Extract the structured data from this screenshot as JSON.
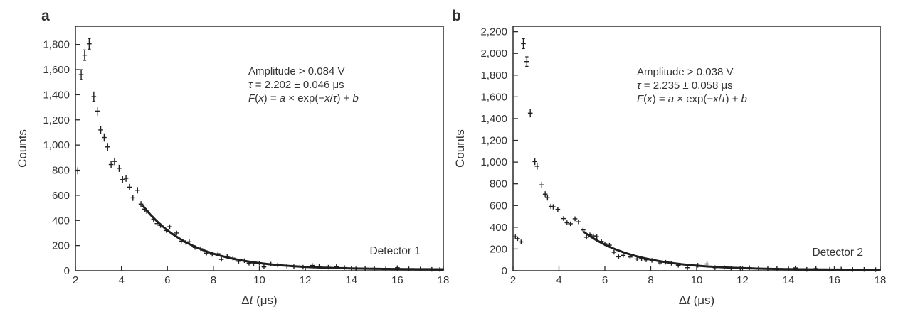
{
  "figure": {
    "background": "#ffffff",
    "ink_color": "#2b2b2b",
    "text_color": "#333333"
  },
  "chart_data": [
    {
      "type": "scatter",
      "panel_letter": "a",
      "detector_label": "Detector 1",
      "ylabel": "Counts",
      "xlabel": "Δt (μs)",
      "xlabel_segments": [
        {
          "t": "Δ"
        },
        {
          "t": "t",
          "i": 1
        },
        {
          "t": " (μs)"
        }
      ],
      "xlim": [
        2,
        18
      ],
      "ylim": [
        0,
        1945
      ],
      "x_ticks": [
        2,
        4,
        6,
        8,
        10,
        12,
        14,
        16,
        18
      ],
      "y_ticks": [
        0,
        200,
        400,
        600,
        800,
        1000,
        1200,
        1400,
        1600,
        1800
      ],
      "grid": false,
      "legend": false,
      "annotation_lines": [
        [
          {
            "t": "Amplitude > 0.084 V"
          }
        ],
        [
          {
            "t": "τ",
            "i": 1
          },
          {
            "t": " = 2.202 ± 0.046 μs"
          }
        ],
        [
          {
            "t": "F",
            "i": 1
          },
          {
            "t": "("
          },
          {
            "t": "x",
            "i": 1
          },
          {
            "t": ") = "
          },
          {
            "t": "a",
            "i": 1
          },
          {
            "t": " × exp(−"
          },
          {
            "t": "x",
            "i": 1
          },
          {
            "t": "/"
          },
          {
            "t": "τ",
            "i": 1
          },
          {
            "t": ") + "
          },
          {
            "t": "b",
            "i": 1
          }
        ]
      ],
      "fit": {
        "model": "F(x) = a × exp(−x/τ) + b",
        "a": 4760,
        "tau": 2.202,
        "b": 10,
        "x_start": 4.95,
        "x_end": 18
      },
      "points": [
        [
          2.1,
          795
        ],
        [
          2.25,
          1560
        ],
        [
          2.4,
          1715
        ],
        [
          2.6,
          1805
        ],
        [
          2.8,
          1385
        ],
        [
          2.95,
          1270
        ],
        [
          3.1,
          1120
        ],
        [
          3.25,
          1060
        ],
        [
          3.4,
          985
        ],
        [
          3.55,
          845
        ],
        [
          3.7,
          870
        ],
        [
          3.9,
          815
        ],
        [
          4.05,
          725
        ],
        [
          4.2,
          735
        ],
        [
          4.35,
          665
        ],
        [
          4.5,
          580
        ],
        [
          4.7,
          640
        ],
        [
          4.85,
          530
        ],
        [
          5.0,
          490
        ],
        [
          5.1,
          475
        ],
        [
          5.4,
          410
        ],
        [
          5.55,
          375
        ],
        [
          5.7,
          360
        ],
        [
          5.95,
          320
        ],
        [
          6.1,
          350
        ],
        [
          6.4,
          300
        ],
        [
          6.6,
          235
        ],
        [
          6.8,
          225
        ],
        [
          6.95,
          230
        ],
        [
          7.2,
          185
        ],
        [
          7.45,
          175
        ],
        [
          7.7,
          140
        ],
        [
          7.95,
          130
        ],
        [
          8.2,
          135
        ],
        [
          8.35,
          90
        ],
        [
          8.6,
          115
        ],
        [
          8.85,
          100
        ],
        [
          9.1,
          75
        ],
        [
          9.35,
          80
        ],
        [
          9.55,
          60
        ],
        [
          9.75,
          55
        ],
        [
          10.0,
          60
        ],
        [
          10.2,
          30
        ],
        [
          10.5,
          52
        ],
        [
          10.8,
          45
        ],
        [
          11.2,
          38
        ],
        [
          11.5,
          32
        ],
        [
          11.9,
          28
        ],
        [
          12.3,
          42
        ],
        [
          12.6,
          35
        ],
        [
          13.0,
          28
        ],
        [
          13.35,
          32
        ],
        [
          13.7,
          25
        ],
        [
          14.2,
          14
        ],
        [
          14.6,
          18
        ],
        [
          15.0,
          20
        ],
        [
          15.5,
          16
        ],
        [
          16.0,
          24
        ],
        [
          16.5,
          15
        ],
        [
          17.0,
          13
        ],
        [
          17.5,
          11
        ],
        [
          17.85,
          10
        ]
      ]
    },
    {
      "type": "scatter",
      "panel_letter": "b",
      "detector_label": "Detector 2",
      "ylabel": "Counts",
      "xlabel": "Δt (μs)",
      "xlabel_segments": [
        {
          "t": "Δ"
        },
        {
          "t": "t",
          "i": 1
        },
        {
          "t": " (μs)"
        }
      ],
      "xlim": [
        2,
        18
      ],
      "ylim": [
        0,
        2250
      ],
      "x_ticks": [
        2,
        4,
        6,
        8,
        10,
        12,
        14,
        16,
        18
      ],
      "y_ticks": [
        0,
        200,
        400,
        600,
        800,
        1000,
        1200,
        1400,
        1600,
        1800,
        2000,
        2200
      ],
      "grid": false,
      "legend": false,
      "annotation_lines": [
        [
          {
            "t": "Amplitude > 0.038 V"
          }
        ],
        [
          {
            "t": "τ",
            "i": 1
          },
          {
            "t": " = 2.235 ± 0.058 μs"
          }
        ],
        [
          {
            "t": "F",
            "i": 1
          },
          {
            "t": "("
          },
          {
            "t": "x",
            "i": 1
          },
          {
            "t": ") = "
          },
          {
            "t": "a",
            "i": 1
          },
          {
            "t": " × exp(−"
          },
          {
            "t": "x",
            "i": 1
          },
          {
            "t": "/"
          },
          {
            "t": "τ",
            "i": 1
          },
          {
            "t": ") + "
          },
          {
            "t": "b",
            "i": 1
          }
        ]
      ],
      "fit": {
        "model": "F(x) = a × exp(−x/τ) + b",
        "a": 3400,
        "tau": 2.235,
        "b": 8,
        "x_start": 5.1,
        "x_end": 18
      },
      "points": [
        [
          2.1,
          312
        ],
        [
          2.2,
          295
        ],
        [
          2.35,
          265
        ],
        [
          2.45,
          2090
        ],
        [
          2.6,
          1925
        ],
        [
          2.75,
          1450
        ],
        [
          2.95,
          1005
        ],
        [
          3.05,
          962
        ],
        [
          3.25,
          790
        ],
        [
          3.4,
          705
        ],
        [
          3.5,
          672
        ],
        [
          3.65,
          592
        ],
        [
          3.75,
          588
        ],
        [
          3.95,
          565
        ],
        [
          4.2,
          480
        ],
        [
          4.35,
          442
        ],
        [
          4.5,
          432
        ],
        [
          4.7,
          478
        ],
        [
          4.85,
          450
        ],
        [
          5.05,
          375
        ],
        [
          5.2,
          308
        ],
        [
          5.35,
          330
        ],
        [
          5.5,
          320
        ],
        [
          5.65,
          312
        ],
        [
          5.85,
          270
        ],
        [
          6.0,
          248
        ],
        [
          6.2,
          235
        ],
        [
          6.4,
          170
        ],
        [
          6.6,
          128
        ],
        [
          6.8,
          142
        ],
        [
          7.1,
          126
        ],
        [
          7.4,
          108
        ],
        [
          7.6,
          112
        ],
        [
          7.8,
          100
        ],
        [
          8.05,
          95
        ],
        [
          8.4,
          72
        ],
        [
          8.65,
          78
        ],
        [
          8.9,
          68
        ],
        [
          9.2,
          50
        ],
        [
          9.6,
          28
        ],
        [
          10.05,
          50
        ],
        [
          10.45,
          62
        ],
        [
          10.8,
          28
        ],
        [
          11.2,
          30
        ],
        [
          11.5,
          25
        ],
        [
          11.9,
          22
        ],
        [
          12.3,
          28
        ],
        [
          12.7,
          20
        ],
        [
          13.1,
          18
        ],
        [
          13.5,
          22
        ],
        [
          14.0,
          15
        ],
        [
          14.3,
          26
        ],
        [
          14.8,
          12
        ],
        [
          15.2,
          20
        ],
        [
          15.8,
          13
        ],
        [
          16.3,
          15
        ],
        [
          16.8,
          11
        ],
        [
          17.3,
          12
        ],
        [
          17.8,
          10
        ]
      ]
    }
  ]
}
